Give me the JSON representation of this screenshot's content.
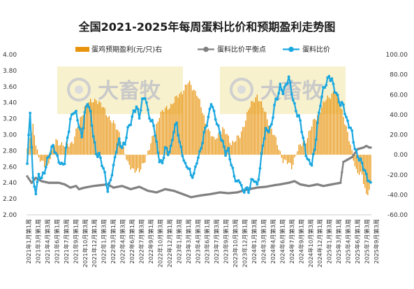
{
  "chart_data": {
    "type": "bar+line",
    "title": "全国2021-2025年每周蛋料比价和预期盈利走势图",
    "legend_position": "top",
    "grid": false,
    "watermark": "大畜牧",
    "y_left": {
      "range": [
        2.0,
        4.0
      ],
      "ticks": [
        "2.00",
        "2.20",
        "2.40",
        "2.60",
        "2.80",
        "3.00",
        "3.20",
        "3.40",
        "3.60",
        "3.80",
        "4.00"
      ]
    },
    "y_right": {
      "range": [
        -60,
        100
      ],
      "ticks": [
        "100.00",
        "80.00",
        "60.00",
        "40.00",
        "20.00",
        "0.00",
        "-20.00",
        "-40.00",
        "-60.00"
      ]
    },
    "x_ticks": [
      "2021年1月第1周",
      "2021年3月第1周",
      "2021年4月第3周",
      "2021年6月第1周",
      "2021年7月第3周",
      "2021年9月第1周",
      "2021年10月第3周",
      "2021年12月第1周",
      "2022年1月第3周",
      "2022年3月第1周",
      "2022年4月第3周",
      "2022年6月第1周",
      "2022年7月第3周",
      "2022年9月第1周",
      "2022年10月第3周",
      "2022年12月第1周",
      "2023年1月第3周",
      "2023年3月第1周",
      "2023年4月第3周",
      "2023年6月第1周",
      "2023年7月第3周",
      "2023年9月第1周",
      "2023年10月第3周",
      "2023年12月第1周",
      "2024年1月第3周",
      "2024年3月第1周",
      "2024年4月第3周",
      "2024年6月第1周",
      "2024年7月第3周",
      "2024年9月第1周",
      "2024年10月第3周",
      "2024年12月第1周",
      "2025年1月第3周",
      "2025年3月第1周",
      "2025年4月第3周",
      "2025年6月第1周",
      "2025年7月第3周",
      "2025年9月第3周"
    ],
    "weeks": 240,
    "series": [
      {
        "name": "蛋鸡预期盈利(元/只)右",
        "type": "bar",
        "axis": "right",
        "color": "#E8930C",
        "anchors": [
          [
            0,
            5
          ],
          [
            4,
            30
          ],
          [
            8,
            -5
          ],
          [
            14,
            -12
          ],
          [
            20,
            15
          ],
          [
            26,
            8
          ],
          [
            32,
            14
          ],
          [
            40,
            48
          ],
          [
            48,
            56
          ],
          [
            56,
            40
          ],
          [
            64,
            22
          ],
          [
            70,
            -10
          ],
          [
            78,
            -18
          ],
          [
            86,
            10
          ],
          [
            92,
            40
          ],
          [
            100,
            50
          ],
          [
            106,
            60
          ],
          [
            112,
            72
          ],
          [
            118,
            62
          ],
          [
            124,
            32
          ],
          [
            130,
            14
          ],
          [
            136,
            26
          ],
          [
            142,
            12
          ],
          [
            148,
            18
          ],
          [
            154,
            45
          ],
          [
            160,
            60
          ],
          [
            166,
            40
          ],
          [
            172,
            18
          ],
          [
            178,
            -5
          ],
          [
            184,
            -12
          ],
          [
            188,
            5
          ],
          [
            194,
            15
          ],
          [
            200,
            35
          ],
          [
            208,
            55
          ],
          [
            214,
            64
          ],
          [
            220,
            40
          ],
          [
            225,
            8
          ],
          [
            229,
            -15
          ],
          [
            233,
            -22
          ],
          [
            236,
            -40
          ],
          [
            239,
            -30
          ]
        ]
      },
      {
        "name": "蛋料比价平衡点",
        "type": "line",
        "axis": "left",
        "color": "#808080",
        "anchors": [
          [
            0,
            2.48
          ],
          [
            3,
            2.4
          ],
          [
            6,
            2.46
          ],
          [
            10,
            2.42
          ],
          [
            15,
            2.4
          ],
          [
            22,
            2.4
          ],
          [
            26,
            2.38
          ],
          [
            30,
            2.34
          ],
          [
            34,
            2.36
          ],
          [
            36,
            2.32
          ],
          [
            40,
            2.34
          ],
          [
            46,
            2.36
          ],
          [
            56,
            2.38
          ],
          [
            60,
            2.34
          ],
          [
            66,
            2.36
          ],
          [
            72,
            2.32
          ],
          [
            78,
            2.35
          ],
          [
            84,
            2.3
          ],
          [
            90,
            2.28
          ],
          [
            96,
            2.32
          ],
          [
            102,
            2.3
          ],
          [
            108,
            2.26
          ],
          [
            114,
            2.22
          ],
          [
            120,
            2.24
          ],
          [
            124,
            2.25
          ],
          [
            128,
            2.26
          ],
          [
            134,
            2.28
          ],
          [
            140,
            2.27
          ],
          [
            146,
            2.28
          ],
          [
            152,
            2.31
          ],
          [
            160,
            2.34
          ],
          [
            166,
            2.35
          ],
          [
            172,
            2.37
          ],
          [
            176,
            2.38
          ],
          [
            182,
            2.4
          ],
          [
            186,
            2.42
          ],
          [
            190,
            2.38
          ],
          [
            196,
            2.36
          ],
          [
            202,
            2.38
          ],
          [
            206,
            2.36
          ],
          [
            212,
            2.38
          ],
          [
            218,
            2.4
          ],
          [
            220,
            2.66
          ],
          [
            224,
            2.7
          ],
          [
            226,
            2.72
          ],
          [
            230,
            2.82
          ],
          [
            234,
            2.84
          ],
          [
            236,
            2.86
          ],
          [
            238,
            2.84
          ],
          [
            239,
            2.84
          ]
        ]
      },
      {
        "name": "蛋料比价",
        "type": "line",
        "axis": "left",
        "color": "#1BA8E0",
        "anchors": [
          [
            0,
            2.62
          ],
          [
            2,
            3.28
          ],
          [
            4,
            2.45
          ],
          [
            6,
            2.3
          ],
          [
            8,
            2.48
          ],
          [
            10,
            2.44
          ],
          [
            12,
            2.55
          ],
          [
            14,
            2.7
          ],
          [
            16,
            2.78
          ],
          [
            18,
            2.84
          ],
          [
            20,
            2.76
          ],
          [
            22,
            2.7
          ],
          [
            24,
            2.62
          ],
          [
            26,
            2.64
          ],
          [
            28,
            2.95
          ],
          [
            30,
            3.2
          ],
          [
            32,
            3.3
          ],
          [
            34,
            3.25
          ],
          [
            36,
            3.1
          ],
          [
            38,
            2.98
          ],
          [
            40,
            3.28
          ],
          [
            42,
            3.4
          ],
          [
            44,
            3.25
          ],
          [
            46,
            3.0
          ],
          [
            48,
            2.78
          ],
          [
            50,
            2.75
          ],
          [
            52,
            2.62
          ],
          [
            54,
            2.5
          ],
          [
            56,
            2.32
          ],
          [
            58,
            2.45
          ],
          [
            60,
            2.58
          ],
          [
            62,
            2.8
          ],
          [
            64,
            2.94
          ],
          [
            66,
            2.86
          ],
          [
            68,
            2.88
          ],
          [
            70,
            3.05
          ],
          [
            72,
            3.16
          ],
          [
            74,
            3.3
          ],
          [
            76,
            3.35
          ],
          [
            78,
            3.2
          ],
          [
            80,
            3.42
          ],
          [
            82,
            3.5
          ],
          [
            84,
            3.3
          ],
          [
            86,
            3.15
          ],
          [
            88,
            3.12
          ],
          [
            90,
            2.9
          ],
          [
            92,
            2.7
          ],
          [
            94,
            2.62
          ],
          [
            96,
            2.82
          ],
          [
            98,
            2.78
          ],
          [
            100,
            2.85
          ],
          [
            102,
            3.05
          ],
          [
            104,
            3.12
          ],
          [
            106,
            2.9
          ],
          [
            108,
            2.78
          ],
          [
            110,
            2.62
          ],
          [
            112,
            2.58
          ],
          [
            114,
            2.48
          ],
          [
            116,
            2.52
          ],
          [
            118,
            2.68
          ],
          [
            120,
            2.75
          ],
          [
            122,
            2.9
          ],
          [
            124,
            3.1
          ],
          [
            126,
            3.22
          ],
          [
            128,
            3.4
          ],
          [
            130,
            3.25
          ],
          [
            132,
            3.15
          ],
          [
            134,
            3.05
          ],
          [
            136,
            2.9
          ],
          [
            138,
            2.75
          ],
          [
            140,
            2.8
          ],
          [
            142,
            2.65
          ],
          [
            144,
            2.5
          ],
          [
            146,
            2.38
          ],
          [
            148,
            2.42
          ],
          [
            150,
            2.3
          ],
          [
            152,
            2.35
          ],
          [
            154,
            2.28
          ],
          [
            156,
            2.4
          ],
          [
            158,
            2.45
          ],
          [
            160,
            2.38
          ],
          [
            162,
            2.58
          ],
          [
            164,
            2.86
          ],
          [
            166,
            3.05
          ],
          [
            168,
            3.08
          ],
          [
            170,
            3.12
          ],
          [
            172,
            3.35
          ],
          [
            174,
            3.45
          ],
          [
            176,
            3.62
          ],
          [
            178,
            3.55
          ],
          [
            180,
            3.6
          ],
          [
            182,
            3.7
          ],
          [
            184,
            3.54
          ],
          [
            186,
            3.38
          ],
          [
            188,
            3.25
          ],
          [
            190,
            3.15
          ],
          [
            192,
            2.95
          ],
          [
            194,
            2.78
          ],
          [
            196,
            2.66
          ],
          [
            198,
            2.62
          ],
          [
            200,
            2.8
          ],
          [
            202,
            3.15
          ],
          [
            204,
            3.4
          ],
          [
            206,
            3.55
          ],
          [
            208,
            3.62
          ],
          [
            210,
            3.74
          ],
          [
            212,
            3.7
          ],
          [
            214,
            3.55
          ],
          [
            216,
            3.45
          ],
          [
            218,
            3.38
          ],
          [
            220,
            3.4
          ],
          [
            222,
            3.2
          ],
          [
            224,
            3.1
          ],
          [
            226,
            3.02
          ],
          [
            228,
            2.85
          ],
          [
            230,
            2.74
          ],
          [
            232,
            2.66
          ],
          [
            234,
            2.58
          ],
          [
            236,
            2.5
          ],
          [
            238,
            2.44
          ],
          [
            239,
            2.38
          ]
        ]
      }
    ]
  }
}
